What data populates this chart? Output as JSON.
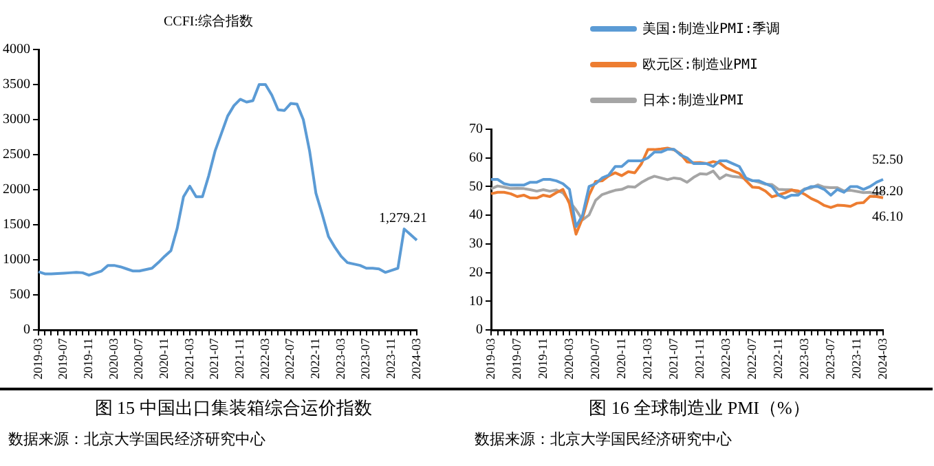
{
  "chart_data": [
    {
      "type": "line",
      "title": "CCFI:综合指数",
      "categories": [
        "2019-03",
        null,
        null,
        null,
        "2019-07",
        null,
        null,
        null,
        "2019-11",
        null,
        null,
        null,
        "2020-03",
        null,
        null,
        null,
        "2020-07",
        null,
        null,
        null,
        "2020-11",
        null,
        null,
        null,
        "2021-03",
        null,
        null,
        null,
        "2021-07",
        null,
        null,
        null,
        "2021-11",
        null,
        null,
        null,
        "2022-03",
        null,
        null,
        null,
        "2022-07",
        null,
        null,
        null,
        "2022-11",
        null,
        null,
        null,
        "2023-03",
        null,
        null,
        null,
        "2023-07",
        null,
        null,
        null,
        "2023-11",
        null,
        null,
        null,
        "2024-03"
      ],
      "series": [
        {
          "color": "#5b9bd5",
          "values": [
            830,
            800,
            800,
            805,
            810,
            815,
            820,
            815,
            780,
            810,
            840,
            920,
            920,
            900,
            870,
            840,
            840,
            860,
            880,
            960,
            1050,
            1130,
            1450,
            1900,
            2050,
            1900,
            1900,
            2200,
            2550,
            2800,
            3050,
            3200,
            3290,
            3250,
            3270,
            3500,
            3500,
            3350,
            3140,
            3130,
            3230,
            3220,
            3000,
            2550,
            1950,
            1650,
            1330,
            1180,
            1050,
            960,
            940,
            920,
            880,
            880,
            870,
            820,
            850,
            880,
            1440,
            1360,
            1279.21
          ]
        }
      ],
      "ylim": [
        0,
        4000
      ],
      "yticks": [
        0,
        500,
        1000,
        1500,
        2000,
        2500,
        3000,
        3500,
        4000
      ],
      "grid": false,
      "legend": false,
      "marker": "none",
      "annotations": [
        {
          "text": "1,279.21",
          "x": "2024-03",
          "y": 1279.21
        },
        "图 15  中国出口集装箱综合运价指数",
        "数据来源：北京大学国民经济研究中心"
      ]
    },
    {
      "type": "line",
      "categories": [
        "2019-03",
        null,
        null,
        null,
        "2019-07",
        null,
        null,
        null,
        "2019-11",
        null,
        null,
        null,
        "2020-03",
        null,
        null,
        null,
        "2020-07",
        null,
        null,
        null,
        "2020-11",
        null,
        null,
        null,
        "2021-03",
        null,
        null,
        null,
        "2021-07",
        null,
        null,
        null,
        "2021-11",
        null,
        null,
        null,
        "2022-03",
        null,
        null,
        null,
        "2022-07",
        null,
        null,
        null,
        "2022-11",
        null,
        null,
        null,
        "2023-03",
        null,
        null,
        null,
        "2023-07",
        null,
        null,
        null,
        "2023-11",
        null,
        null,
        null,
        "2024-03"
      ],
      "series": [
        {
          "name": "美国:制造业PMI:季调",
          "color": "#5b9bd5",
          "values": [
            52.5,
            52.5,
            51,
            50.5,
            50.5,
            50.5,
            51.5,
            51.5,
            52.5,
            52.5,
            52,
            51,
            49,
            36,
            40,
            50,
            51,
            53,
            54,
            57,
            57,
            59,
            59,
            59,
            60,
            62,
            62,
            63,
            63,
            61,
            60,
            58,
            58,
            58,
            57,
            59,
            59,
            58,
            57,
            53,
            52,
            52,
            51,
            50,
            47,
            46,
            47,
            47,
            49,
            50,
            50,
            49,
            47,
            49,
            48,
            50,
            50,
            49,
            50,
            51.5,
            52.5
          ]
        },
        {
          "name": "欧元区:制造业PMI",
          "color": "#ed7d31",
          "values": [
            47.5,
            48,
            48,
            47.5,
            46.5,
            47,
            46,
            46,
            47,
            46.5,
            47.9,
            49,
            44,
            33.4,
            39,
            47,
            51.8,
            52,
            53.7,
            54.8,
            53.8,
            55.2,
            54.8,
            57.9,
            62.9,
            62.9,
            63.1,
            63.4,
            62.8,
            61.4,
            58.6,
            58.3,
            58.4,
            58,
            58.7,
            58.2,
            56.5,
            55.5,
            54.6,
            52.1,
            49.8,
            49.6,
            48.4,
            46.4,
            47.1,
            47.8,
            48.8,
            48.5,
            47.3,
            45.8,
            44.8,
            43.4,
            42.7,
            43.5,
            43.4,
            43.1,
            44.2,
            44.4,
            46.6,
            46.5,
            46.1
          ]
        },
        {
          "name": "日本:制造业PMI",
          "color": "#a5a5a5",
          "values": [
            49.2,
            50.2,
            49.8,
            49.3,
            49.4,
            49.3,
            48.9,
            48.4,
            48.9,
            48.4,
            48.8,
            47.8,
            44.8,
            41.9,
            38.4,
            40.1,
            45.2,
            47.2,
            48,
            48.7,
            49,
            50,
            49.8,
            51.4,
            52.7,
            53.6,
            53,
            52.4,
            53,
            52.7,
            51.5,
            53.2,
            54.5,
            54.3,
            55.4,
            52.7,
            54.1,
            53.5,
            53.3,
            52.7,
            52.1,
            51.5,
            50.8,
            50.7,
            49,
            48.9,
            48.9,
            47.7,
            49.2,
            49.5,
            50.6,
            49.8,
            49.6,
            49.6,
            48.5,
            48.7,
            48.3,
            47.9,
            48,
            47.2,
            48.2
          ]
        }
      ],
      "ylim": [
        0,
        70
      ],
      "yticks": [
        0,
        10,
        20,
        30,
        40,
        50,
        60,
        70
      ],
      "grid": false,
      "legend": "top left",
      "marker": "none",
      "annotations": [
        {
          "text": "52.50",
          "x": "2024-03",
          "y": 52.5
        },
        {
          "text": "48.20",
          "x": "2024-03",
          "y": 48.2
        },
        {
          "text": "46.10",
          "x": "2024-03",
          "y": 46.1
        },
        "图 16  全球制造业 PMI（%）",
        "数据来源：北京大学国民经济研究中心"
      ]
    }
  ]
}
